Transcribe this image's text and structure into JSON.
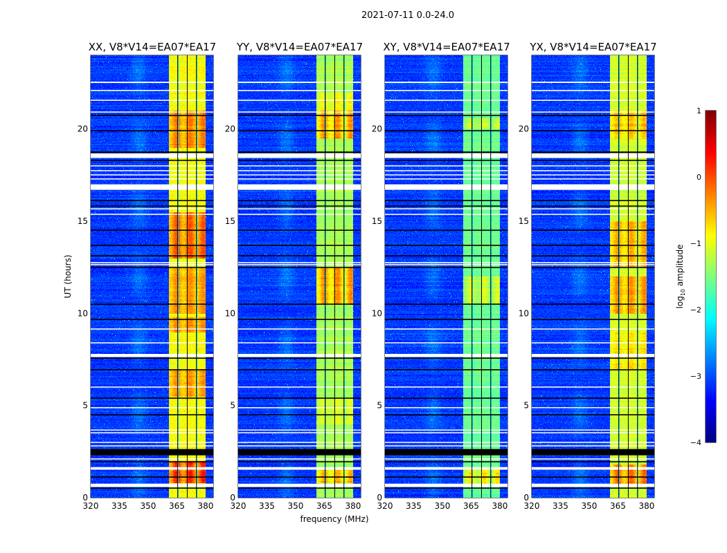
{
  "chart_data": {
    "type": "heatmap",
    "title": "2021-07-11 0.0-24.0",
    "xlabel": "frequency (MHz)",
    "ylabel": "UT (hours)",
    "xlim": [
      320,
      384
    ],
    "ylim": [
      0,
      24
    ],
    "xticks": [
      320,
      335,
      350,
      365,
      380
    ],
    "yticks": [
      0,
      5,
      10,
      15,
      20
    ],
    "colorbar": {
      "label": "log10 amplitude",
      "label_main": "log",
      "label_sub": "10",
      "label_rest": " amplitude",
      "range": [
        -4,
        1
      ],
      "ticks": [
        1,
        0,
        -1,
        -2,
        -3,
        -4
      ],
      "tick_labels": [
        "1",
        "0",
        "−1",
        "−2",
        "−3",
        "−4"
      ],
      "colormap": "jet"
    },
    "ytick_labels": [
      "0",
      "5",
      "10",
      "15",
      "20"
    ],
    "xtick_labels": [
      "320",
      "335",
      "350",
      "365",
      "380"
    ],
    "spectral_windows": [
      [
        360.5,
        365.4
      ],
      [
        365.6,
        370.4
      ],
      [
        370.6,
        375.2
      ],
      [
        375.4,
        380.0
      ]
    ],
    "background_level": -3.1,
    "flagged_white_ut": [
      [
        22.5,
        22.57
      ],
      [
        22.06,
        22.12
      ],
      [
        21.53,
        21.59
      ],
      [
        20.9,
        20.95
      ],
      [
        18.43,
        18.68
      ],
      [
        17.98,
        18.03
      ],
      [
        17.72,
        17.77
      ],
      [
        17.49,
        17.54
      ],
      [
        17.27,
        17.32
      ],
      [
        16.7,
        17.0
      ],
      [
        15.65,
        15.7
      ],
      [
        15.35,
        15.4
      ],
      [
        12.72,
        12.78
      ],
      [
        12.61,
        12.67
      ],
      [
        9.13,
        9.18
      ],
      [
        8.38,
        8.43
      ],
      [
        7.63,
        7.8
      ],
      [
        5.98,
        6.03
      ],
      [
        4.86,
        4.91
      ],
      [
        3.65,
        3.7
      ],
      [
        3.5,
        3.55
      ],
      [
        2.98,
        3.03
      ],
      [
        2.79,
        2.84
      ],
      [
        2.08,
        2.13
      ],
      [
        1.52,
        1.66
      ],
      [
        0.58,
        0.76
      ]
    ],
    "flagged_black_ut": [
      [
        20.71,
        20.77
      ],
      [
        19.88,
        19.94
      ],
      [
        18.7,
        18.78
      ],
      [
        18.27,
        18.33
      ],
      [
        16.09,
        16.15
      ],
      [
        15.79,
        15.85
      ],
      [
        14.48,
        14.54
      ],
      [
        13.66,
        13.72
      ],
      [
        13.09,
        13.15
      ],
      [
        12.46,
        12.52
      ],
      [
        10.47,
        10.53
      ],
      [
        9.64,
        9.7
      ],
      [
        7.54,
        7.6
      ],
      [
        6.91,
        6.97
      ],
      [
        5.37,
        5.43
      ],
      [
        4.47,
        4.53
      ],
      [
        2.3,
        2.64
      ],
      [
        1.92,
        1.98
      ],
      [
        1.09,
        1.15
      ],
      [
        0.49,
        0.55
      ]
    ],
    "panels": [
      {
        "title": "XX, V8*V14=EA07*EA17",
        "band_level": -0.9,
        "hot": [
          [
            0.8,
            2.0,
            1.2
          ],
          [
            5.5,
            7.0,
            0.6
          ],
          [
            9.0,
            9.8,
            0.6
          ],
          [
            10.0,
            12.5,
            0.6
          ],
          [
            13.0,
            15.5,
            0.9
          ],
          [
            19.0,
            21.0,
            0.7
          ]
        ]
      },
      {
        "title": "YY, V8*V14=EA07*EA17",
        "band_level": -1.3,
        "hot": [
          [
            0.8,
            1.5,
            0.9
          ],
          [
            4.0,
            5.5,
            0.3
          ],
          [
            10.5,
            12.5,
            1.0
          ],
          [
            19.5,
            21.0,
            1.0
          ],
          [
            21.0,
            22.0,
            0.5
          ]
        ]
      },
      {
        "title": "XY, V8*V14=EA07*EA17",
        "band_level": -1.6,
        "hot": [
          [
            0.7,
            1.6,
            0.9
          ],
          [
            10.5,
            12.0,
            0.6
          ],
          [
            20.0,
            20.6,
            0.5
          ]
        ]
      },
      {
        "title": "YX, V8*V14=EA07*EA17",
        "band_level": -1.1,
        "hot": [
          [
            0.7,
            1.8,
            1.0
          ],
          [
            7.0,
            9.0,
            0.4
          ],
          [
            10.0,
            12.0,
            0.8
          ],
          [
            12.5,
            15.0,
            0.7
          ],
          [
            19.5,
            21.0,
            0.6
          ]
        ]
      }
    ]
  }
}
